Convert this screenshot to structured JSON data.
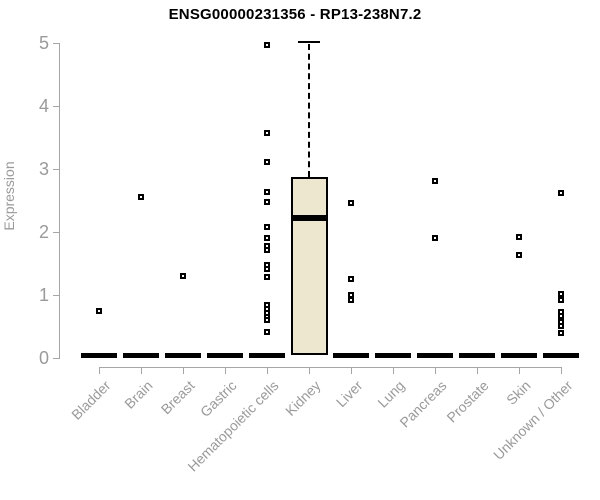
{
  "chart_data": {
    "type": "boxplot",
    "title": "ENSG00000231356 - RP13-238N7.2",
    "ylabel": "Expression",
    "xlabel": "",
    "ylim": [
      0,
      5
    ],
    "yticks": [
      0,
      1,
      2,
      3,
      4,
      5
    ],
    "grid": false,
    "legend": null,
    "categories": [
      "Bladder",
      "Brain",
      "Breast",
      "Gastric",
      "Hematopoietic cells",
      "Kidney",
      "Liver",
      "Lung",
      "Pancreas",
      "Prostate",
      "Skin",
      "Unknown / Other"
    ],
    "boxes": [
      {
        "category": "Bladder",
        "q1": 0,
        "median": 0,
        "q3": 0,
        "whisker_low": 0,
        "whisker_high": 0,
        "outliers": [
          0.74
        ]
      },
      {
        "category": "Brain",
        "q1": 0,
        "median": 0,
        "q3": 0,
        "whisker_low": 0,
        "whisker_high": 0,
        "outliers": [
          2.55
        ]
      },
      {
        "category": "Breast",
        "q1": 0,
        "median": 0,
        "q3": 0,
        "whisker_low": 0,
        "whisker_high": 0,
        "outliers": [
          1.3
        ]
      },
      {
        "category": "Gastric",
        "q1": 0,
        "median": 0,
        "q3": 0,
        "whisker_low": 0,
        "whisker_high": 0,
        "outliers": []
      },
      {
        "category": "Hematopoietic cells",
        "q1": 0,
        "median": 0,
        "q3": 0,
        "whisker_low": 0,
        "whisker_high": 0,
        "outliers": [
          4.97,
          3.57,
          3.11,
          2.63,
          2.47,
          2.08,
          1.91,
          1.78,
          1.71,
          1.48,
          1.41,
          1.29,
          0.84,
          0.78,
          0.71,
          0.65,
          0.6,
          0.41
        ]
      },
      {
        "category": "Kidney",
        "q1": 0.05,
        "median": 2.22,
        "q3": 2.88,
        "whisker_low": 0.05,
        "whisker_high": 5.02,
        "outliers": []
      },
      {
        "category": "Liver",
        "q1": 0,
        "median": 0,
        "q3": 0,
        "whisker_low": 0,
        "whisker_high": 0,
        "outliers": [
          2.46,
          1.25,
          1.0,
          0.92
        ]
      },
      {
        "category": "Lung",
        "q1": 0,
        "median": 0,
        "q3": 0,
        "whisker_low": 0,
        "whisker_high": 0,
        "outliers": []
      },
      {
        "category": "Pancreas",
        "q1": 0,
        "median": 0,
        "q3": 0,
        "whisker_low": 0,
        "whisker_high": 0,
        "outliers": [
          2.81,
          1.9
        ]
      },
      {
        "category": "Prostate",
        "q1": 0,
        "median": 0,
        "q3": 0,
        "whisker_low": 0,
        "whisker_high": 0,
        "outliers": []
      },
      {
        "category": "Skin",
        "q1": 0,
        "median": 0,
        "q3": 0,
        "whisker_low": 0,
        "whisker_high": 0,
        "outliers": [
          1.92,
          1.63
        ]
      },
      {
        "category": "Unknown / Other",
        "q1": 0,
        "median": 0,
        "q3": 0,
        "whisker_low": 0,
        "whisker_high": 0,
        "outliers": [
          2.62,
          1.02,
          0.92,
          0.73,
          0.67,
          0.57,
          0.51,
          0.4
        ]
      }
    ],
    "colors": {
      "box_fill": "#EEE7D0",
      "box_border": "#000000",
      "median": "#000000",
      "outlier_border": "#000000",
      "axis_line": "#a6a6a6",
      "tick_label": "#9a9a9a",
      "title": "#000000",
      "background": "#ffffff"
    }
  }
}
